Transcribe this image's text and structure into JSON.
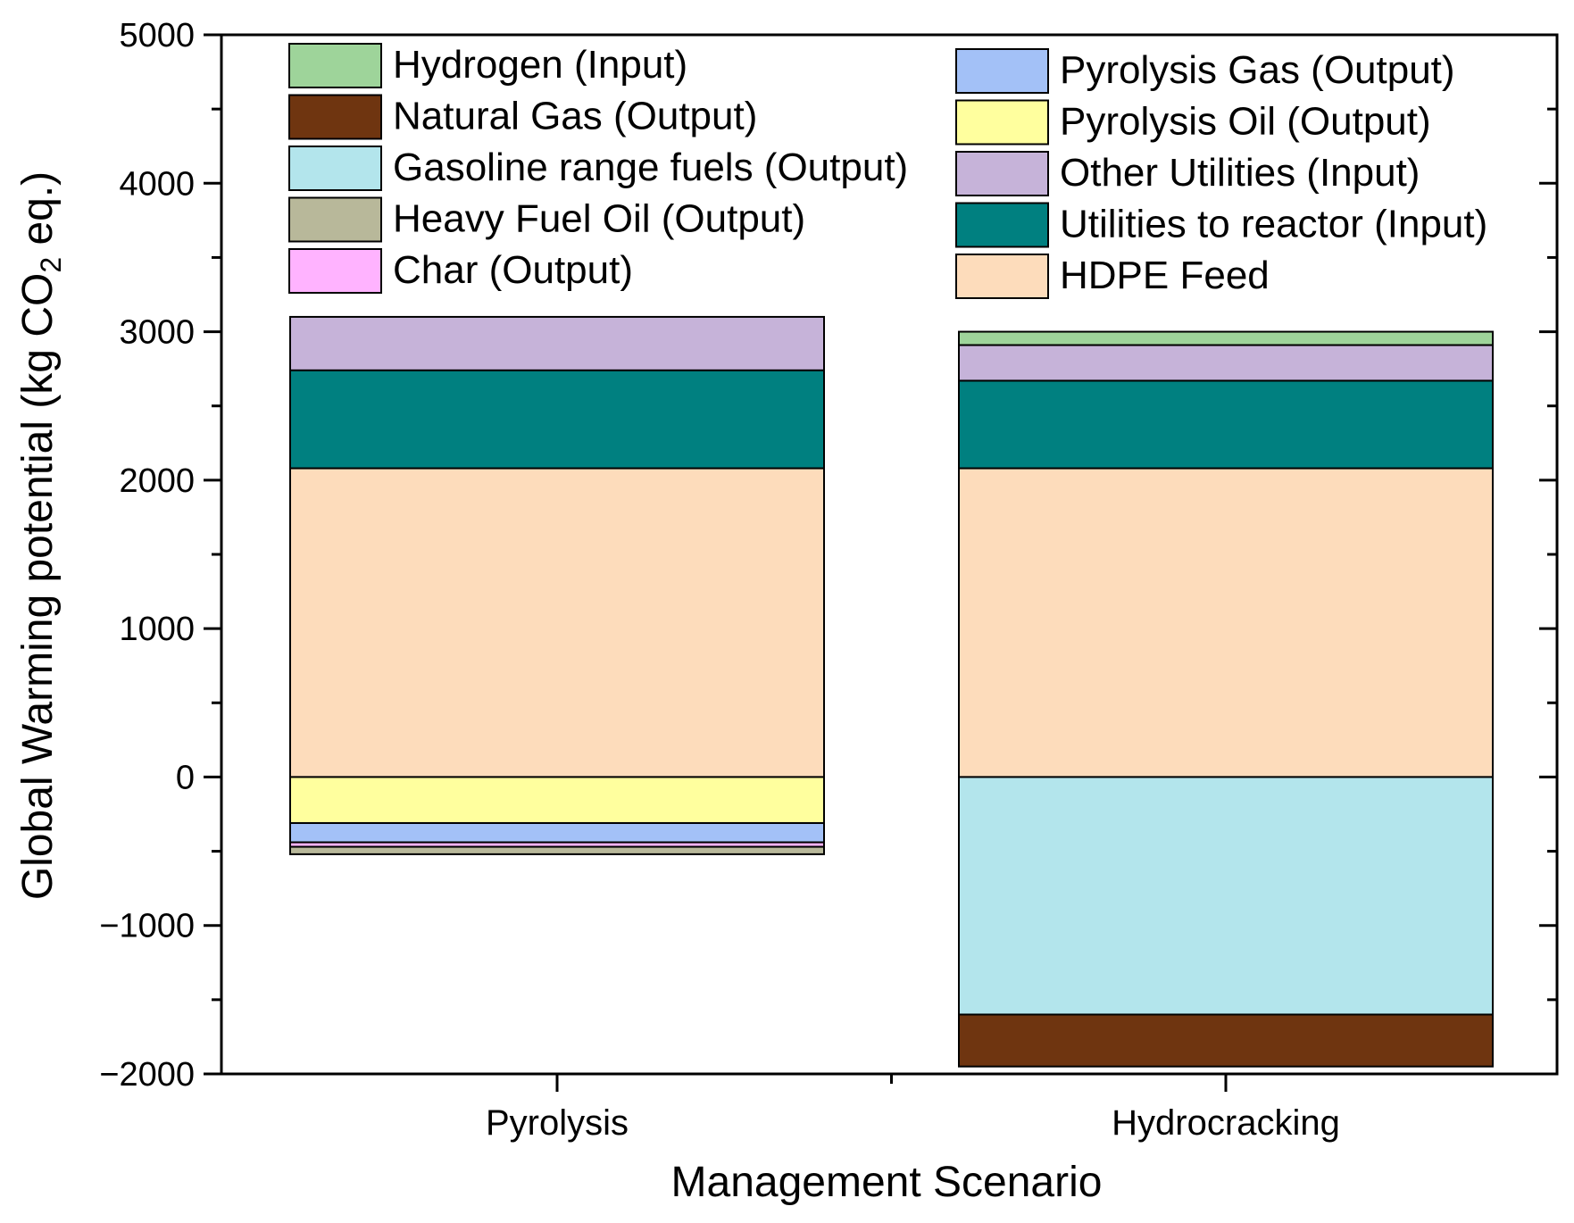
{
  "chart_data": {
    "type": "bar",
    "stacked": true,
    "categories": [
      "Pyrolysis",
      "Hydrocracking"
    ],
    "xlabel": "Management Scenario",
    "ylabel_parts": [
      "Global Warming potential (kg CO",
      "2",
      " eq.)"
    ],
    "ylim": [
      -2000,
      5000
    ],
    "yticks": [
      5000,
      4000,
      3000,
      2000,
      1000,
      0,
      -1000,
      -2000
    ],
    "ytick_labels": [
      "5000",
      "4000",
      "3000",
      "2000",
      "1000",
      "0",
      "−1000",
      "−2000"
    ],
    "series": [
      {
        "name": "HDPE Feed",
        "color": "#FDDCBB",
        "values": [
          2080,
          2080
        ]
      },
      {
        "name": "Utilities to reactor (Input)",
        "color": "#008080",
        "values": [
          660,
          590
        ]
      },
      {
        "name": "Other Utilities (Input)",
        "color": "#C6B3D9",
        "values": [
          360,
          240
        ]
      },
      {
        "name": "Hydrogen (Input)",
        "color": "#9ED49A",
        "values": [
          0,
          90
        ]
      },
      {
        "name": "Pyrolysis Oil (Output)",
        "color": "#FFFF9E",
        "values": [
          -310,
          0
        ]
      },
      {
        "name": "Pyrolysis Gas (Output)",
        "color": "#A3C1F7",
        "values": [
          -130,
          0
        ]
      },
      {
        "name": "Char (Output)",
        "color": "#FFB3FF",
        "values": [
          -30,
          0
        ]
      },
      {
        "name": "Heavy Fuel Oil (Output)",
        "color": "#B8B89A",
        "values": [
          -50,
          0
        ]
      },
      {
        "name": "Gasoline range fuels (Output)",
        "color": "#B3E5EC",
        "values": [
          0,
          -1600
        ]
      },
      {
        "name": "Natural Gas (Output)",
        "color": "#6F3510",
        "values": [
          0,
          -350
        ]
      }
    ],
    "legend": {
      "left": [
        "Hydrogen (Input)",
        "Natural Gas (Output)",
        "Gasoline range fuels (Output)",
        "Heavy Fuel Oil (Output)",
        "Char (Output)"
      ],
      "right": [
        "Pyrolysis Gas (Output)",
        "Pyrolysis Oil (Output)",
        "Other Utilities (Input)",
        "Utilities to reactor (Input)",
        "HDPE Feed"
      ],
      "placement": "top"
    },
    "grid": false
  }
}
